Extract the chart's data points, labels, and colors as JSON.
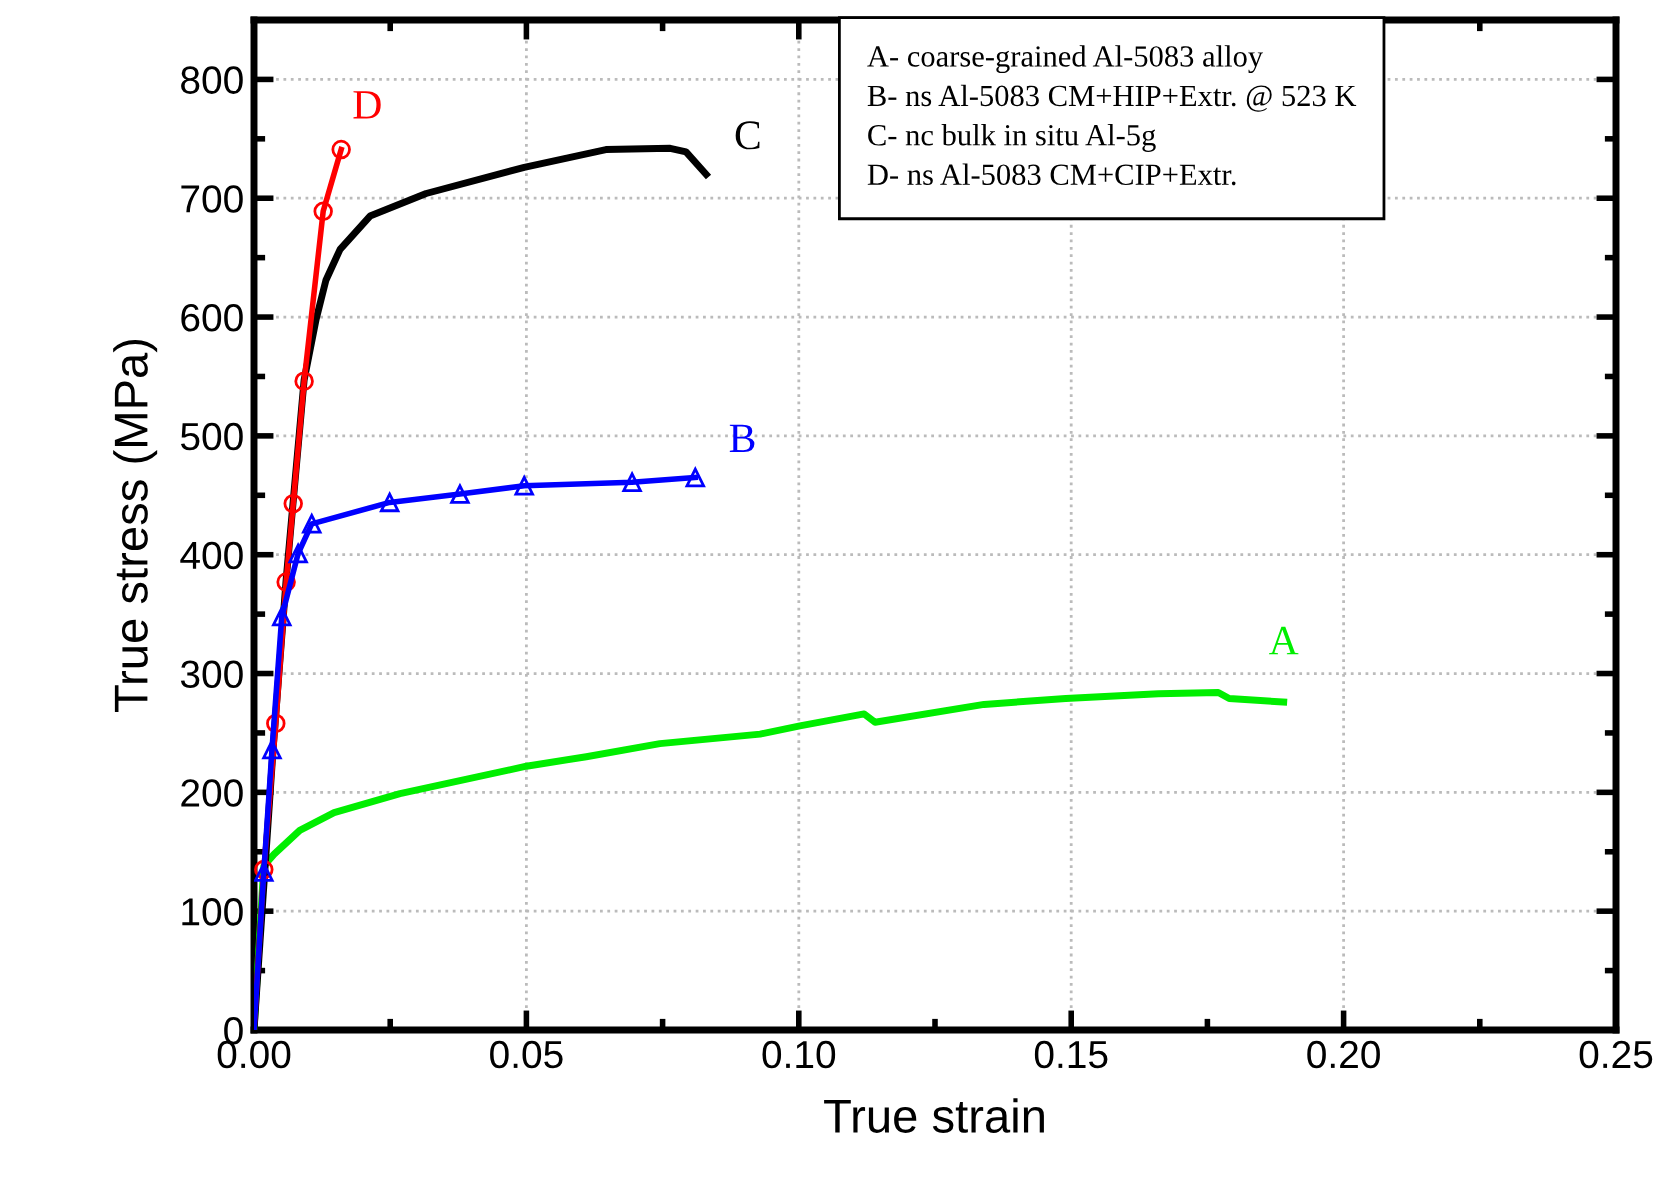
{
  "chart_data": {
    "type": "line",
    "xlabel": "True strain",
    "ylabel": "True stress (MPa)",
    "xlim": [
      0,
      0.25
    ],
    "ylim": [
      0,
      850
    ],
    "xticks": [
      {
        "value": 0,
        "label": "0.00"
      },
      {
        "value": 0.05,
        "label": "0.05"
      },
      {
        "value": 0.1,
        "label": "0.10"
      },
      {
        "value": 0.15,
        "label": "0.15"
      },
      {
        "value": 0.2,
        "label": "0.20"
      },
      {
        "value": 0.25,
        "label": "0.25"
      }
    ],
    "yticks": [
      0,
      100,
      200,
      300,
      400,
      500,
      600,
      700,
      800
    ],
    "grid": true,
    "annotations": [
      "A- coarse-grained Al-5083 alloy",
      "B- ns Al-5083 CM+HIP+Extr. @ 523 K",
      "C- nc bulk in situ Al-5g",
      "D- ns Al-5083 CM+CIP+Extr."
    ],
    "series": [
      {
        "name": "A",
        "color": "#00ee00",
        "marker": "none",
        "x": [
          0,
          0.0018,
          0.0037,
          0.0084,
          0.0147,
          0.0268,
          0.05,
          0.061,
          0.0745,
          0.0929,
          0.1002,
          0.112,
          0.114,
          0.134,
          0.149,
          0.166,
          0.177,
          0.179,
          0.189
        ],
        "values": [
          0,
          138,
          148,
          168,
          183,
          199,
          222,
          230,
          241,
          249,
          256,
          266,
          259,
          274,
          279,
          283,
          284,
          279,
          276
        ]
      },
      {
        "name": "B",
        "color": "#0000ff",
        "marker": "triangle",
        "x": [
          0,
          0.0018,
          0.0033,
          0.0051,
          0.0081,
          0.0106,
          0.0249,
          0.0378,
          0.0496,
          0.0694,
          0.081
        ],
        "values": [
          0,
          133,
          236,
          348,
          401,
          426,
          444,
          451,
          458,
          461,
          465
        ]
      },
      {
        "name": "C",
        "color": "#000000",
        "marker": "none",
        "x": [
          0,
          0.0035,
          0.0059,
          0.0092,
          0.0114,
          0.0132,
          0.0158,
          0.0213,
          0.0316,
          0.0496,
          0.0646,
          0.0764,
          0.0793,
          0.083
        ],
        "values": [
          0,
          236,
          379,
          547,
          598,
          631,
          657,
          685,
          704,
          726,
          741,
          742,
          739,
          720
        ]
      },
      {
        "name": "D",
        "color": "#ff0000",
        "marker": "circle",
        "x": [
          0,
          0.0018,
          0.004,
          0.0059,
          0.0072,
          0.0092,
          0.0127,
          0.016
        ],
        "values": [
          0,
          135,
          258,
          377,
          443,
          546,
          689,
          741
        ]
      }
    ]
  }
}
